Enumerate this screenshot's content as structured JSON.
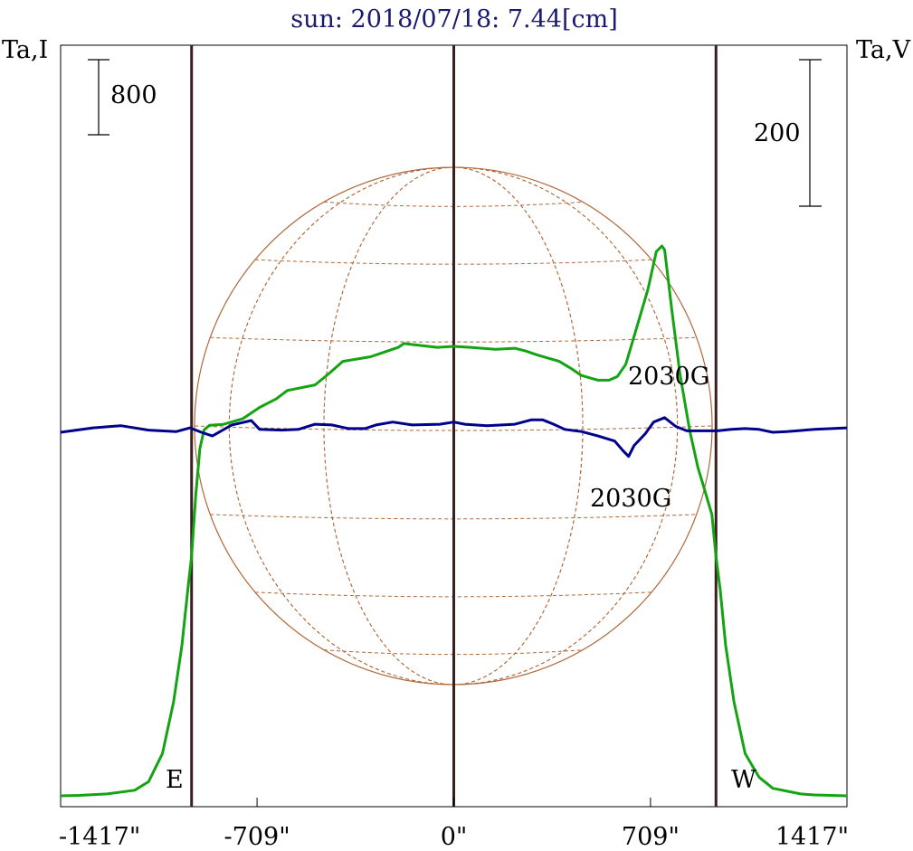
{
  "title": "sun: 2018/07/18: 7.44[cm]",
  "colors": {
    "title": "#1a1a6e",
    "frame": "#000000",
    "intensity": "#13a313",
    "polarization": "#00008b",
    "limb_lines": "#3a1f1f",
    "globe": "#b0683a"
  },
  "chart_data": {
    "type": "line",
    "title": "sun: 2018/07/18: 7.44[cm]",
    "xlabel": "",
    "left_axis_label": "Ta,I",
    "right_axis_label": "Ta,V",
    "xlim": [
      -1417,
      1417
    ],
    "x_tick_labels": [
      "-1417\"",
      "-709\"",
      "0\"",
      "709\"",
      "1417\""
    ],
    "x_ticks": [
      -1417,
      -709,
      0,
      709,
      1417
    ],
    "scale_bar_left": {
      "label": "800",
      "value": 800
    },
    "scale_bar_right": {
      "label": "200",
      "value": 200
    },
    "limb_markers": [
      {
        "x": -945,
        "label": "E"
      },
      {
        "x": 0,
        "label": ""
      },
      {
        "x": 945,
        "label": "W"
      }
    ],
    "annotations": [
      {
        "text": "2030G",
        "x": 830,
        "series": "Ta,V",
        "position": "above"
      },
      {
        "text": "2030G",
        "x": 620,
        "series": "Ta,V",
        "position": "below"
      }
    ],
    "grid": false,
    "series": [
      {
        "name": "Ta,I",
        "axis": "left",
        "values": [
          [
            -1417,
            0
          ],
          [
            -1350,
            5
          ],
          [
            -1250,
            20
          ],
          [
            -1150,
            60
          ],
          [
            -1100,
            150
          ],
          [
            -1050,
            450
          ],
          [
            -1010,
            1000
          ],
          [
            -980,
            1600
          ],
          [
            -955,
            2300
          ],
          [
            -945,
            2550
          ],
          [
            -930,
            3200
          ],
          [
            -915,
            3700
          ],
          [
            -900,
            3900
          ],
          [
            -880,
            3950
          ],
          [
            -830,
            3960
          ],
          [
            -760,
            4020
          ],
          [
            -700,
            4140
          ],
          [
            -640,
            4230
          ],
          [
            -600,
            4320
          ],
          [
            -500,
            4380
          ],
          [
            -450,
            4500
          ],
          [
            -400,
            4630
          ],
          [
            -300,
            4680
          ],
          [
            -250,
            4730
          ],
          [
            -200,
            4780
          ],
          [
            -180,
            4820
          ],
          [
            -120,
            4800
          ],
          [
            -60,
            4780
          ],
          [
            0,
            4790
          ],
          [
            60,
            4780
          ],
          [
            150,
            4760
          ],
          [
            220,
            4770
          ],
          [
            260,
            4740
          ],
          [
            300,
            4700
          ],
          [
            380,
            4630
          ],
          [
            420,
            4560
          ],
          [
            460,
            4480
          ],
          [
            520,
            4430
          ],
          [
            560,
            4430
          ],
          [
            590,
            4470
          ],
          [
            620,
            4600
          ],
          [
            660,
            5000
          ],
          [
            700,
            5400
          ],
          [
            730,
            5800
          ],
          [
            750,
            5860
          ],
          [
            760,
            5820
          ],
          [
            785,
            5200
          ],
          [
            815,
            4500
          ],
          [
            850,
            3900
          ],
          [
            880,
            3500
          ],
          [
            900,
            3300
          ],
          [
            930,
            3000
          ],
          [
            945,
            2550
          ],
          [
            960,
            2200
          ],
          [
            980,
            1600
          ],
          [
            1010,
            1000
          ],
          [
            1050,
            450
          ],
          [
            1100,
            200
          ],
          [
            1150,
            80
          ],
          [
            1250,
            20
          ],
          [
            1300,
            10
          ],
          [
            1417,
            0
          ]
        ]
      },
      {
        "name": "Ta,V",
        "axis": "right",
        "values": [
          [
            -1417,
            0
          ],
          [
            -1300,
            6
          ],
          [
            -1200,
            9
          ],
          [
            -1100,
            3
          ],
          [
            -1000,
            1
          ],
          [
            -950,
            6
          ],
          [
            -910,
            0
          ],
          [
            -870,
            -5
          ],
          [
            -800,
            10
          ],
          [
            -730,
            16
          ],
          [
            -700,
            4
          ],
          [
            -620,
            3
          ],
          [
            -560,
            4
          ],
          [
            -500,
            11
          ],
          [
            -440,
            10
          ],
          [
            -380,
            5
          ],
          [
            -320,
            5
          ],
          [
            -280,
            10
          ],
          [
            -220,
            14
          ],
          [
            -150,
            10
          ],
          [
            -50,
            11
          ],
          [
            0,
            14
          ],
          [
            40,
            11
          ],
          [
            120,
            9
          ],
          [
            220,
            11
          ],
          [
            280,
            17
          ],
          [
            320,
            17
          ],
          [
            360,
            11
          ],
          [
            400,
            4
          ],
          [
            460,
            1
          ],
          [
            520,
            -5
          ],
          [
            580,
            -12
          ],
          [
            610,
            -25
          ],
          [
            630,
            -33
          ],
          [
            650,
            -18
          ],
          [
            690,
            -2
          ],
          [
            720,
            14
          ],
          [
            760,
            20
          ],
          [
            800,
            8
          ],
          [
            840,
            2
          ],
          [
            900,
            2
          ],
          [
            950,
            2
          ],
          [
            1000,
            4
          ],
          [
            1050,
            5
          ],
          [
            1100,
            4
          ],
          [
            1150,
            0
          ],
          [
            1200,
            1
          ],
          [
            1300,
            4
          ],
          [
            1417,
            6
          ]
        ]
      }
    ]
  }
}
